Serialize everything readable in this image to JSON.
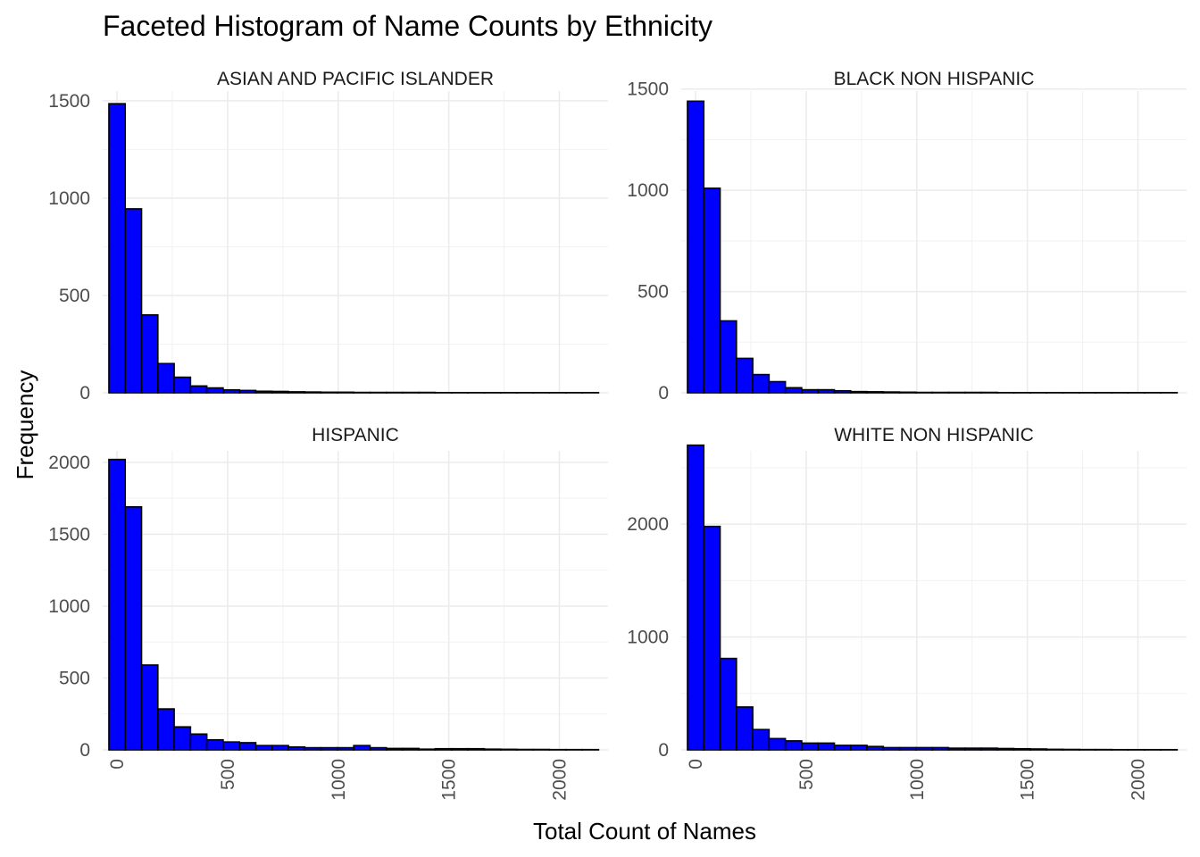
{
  "chart_data": {
    "type": "bar",
    "subtype": "faceted-histogram",
    "title": "Faceted Histogram of Name Counts by Ethnicity",
    "xlabel": "Total Count of Names",
    "ylabel": "Frequency",
    "bin_width": 73.8,
    "bin_start": -36.9,
    "xlim": [
      -65,
      2220
    ],
    "x_ticks": [
      0,
      500,
      1000,
      1500,
      2000
    ],
    "x_tick_labels": [
      "0",
      "500",
      "1000",
      "1500",
      "2000"
    ],
    "grid": true,
    "bar_fill": "#0000FF",
    "bar_outline": "#000000",
    "facets": [
      {
        "name": "ASIAN AND PACIFIC ISLANDER",
        "ylim": [
          0,
          1550
        ],
        "y_ticks": [
          0,
          500,
          1000,
          1500
        ],
        "y_tick_labels": [
          "0",
          "500",
          "1000",
          "1500"
        ],
        "counts": [
          1485,
          945,
          400,
          150,
          80,
          35,
          25,
          15,
          12,
          8,
          7,
          5,
          4,
          3,
          3,
          2,
          2,
          2,
          2,
          2,
          1,
          1,
          1,
          1,
          1,
          1,
          1,
          1,
          1,
          1
        ]
      },
      {
        "name": "BLACK NON HISPANIC",
        "ylim": [
          0,
          1490
        ],
        "y_ticks": [
          0,
          500,
          1000,
          1500
        ],
        "y_tick_labels": [
          "0",
          "500",
          "1000",
          "1500"
        ],
        "counts": [
          1440,
          1010,
          355,
          170,
          90,
          55,
          25,
          15,
          15,
          10,
          6,
          5,
          4,
          3,
          2,
          2,
          2,
          2,
          2,
          1,
          1,
          1,
          1,
          1,
          1,
          1,
          1,
          1,
          1,
          1
        ]
      },
      {
        "name": "HISPANIC",
        "ylim": [
          0,
          2080
        ],
        "y_ticks": [
          0,
          500,
          1000,
          1500,
          2000
        ],
        "y_tick_labels": [
          "0",
          "500",
          "1000",
          "1500",
          "2000"
        ],
        "counts": [
          2020,
          1690,
          590,
          285,
          160,
          110,
          70,
          55,
          50,
          30,
          30,
          20,
          15,
          15,
          15,
          30,
          15,
          10,
          10,
          5,
          8,
          8,
          8,
          5,
          4,
          3,
          3,
          2,
          2,
          2
        ]
      },
      {
        "name": "WHITE NON HISPANIC",
        "ylim": [
          0,
          2650
        ],
        "y_ticks": [
          0,
          1000,
          2000
        ],
        "y_tick_labels": [
          "0",
          "1000",
          "2000"
        ],
        "counts": [
          2700,
          1980,
          810,
          380,
          180,
          100,
          80,
          60,
          60,
          40,
          40,
          30,
          20,
          20,
          20,
          20,
          15,
          15,
          15,
          12,
          10,
          8,
          5,
          4,
          3,
          3,
          2,
          2,
          2,
          2
        ]
      }
    ]
  }
}
